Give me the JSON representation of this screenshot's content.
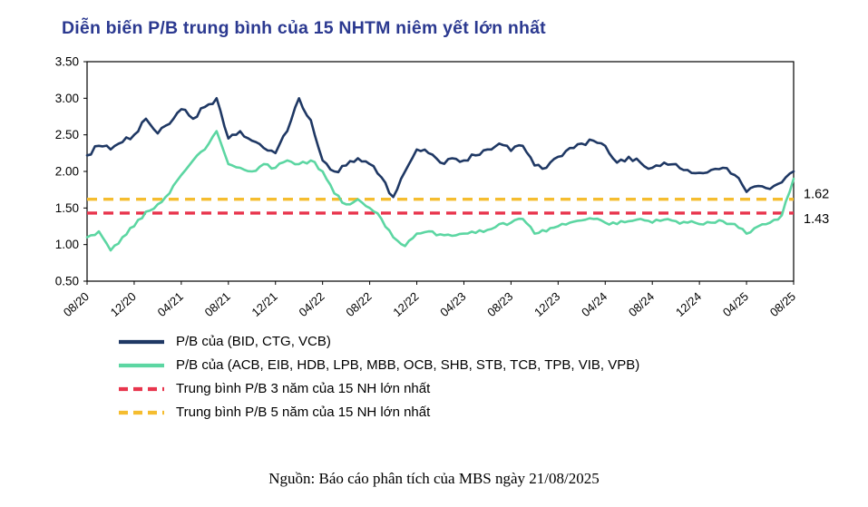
{
  "colors": {
    "title": "#2B3990",
    "navy_series": "#1F3864",
    "green_series": "#5CD6A2",
    "red_reference": "#E8354D",
    "yellow_reference": "#F5BD2F",
    "axis": "#000000",
    "background": "#FFFFFF"
  },
  "caption": "Nguồn: Báo cáo phân tích của MBS ngày 21/08/2025",
  "chart_data": {
    "type": "line",
    "title": "Diễn biến P/B trung bình của 15 NHTM niêm yết lớn nhất",
    "ylim": [
      0.5,
      3.5
    ],
    "y_ticks": [
      0.5,
      1.0,
      1.5,
      2.0,
      2.5,
      3.0,
      3.5
    ],
    "grid": false,
    "legend_position": "bottom-left",
    "x_tick_every": 4,
    "x_labels": [
      "08/20",
      "09/20",
      "10/20",
      "11/20",
      "12/20",
      "01/21",
      "02/21",
      "03/21",
      "04/21",
      "05/21",
      "06/21",
      "07/21",
      "08/21",
      "09/21",
      "10/21",
      "11/21",
      "12/21",
      "01/22",
      "02/22",
      "03/22",
      "04/22",
      "05/22",
      "06/22",
      "07/22",
      "08/22",
      "09/22",
      "10/22",
      "11/22",
      "12/22",
      "01/23",
      "02/23",
      "03/23",
      "04/23",
      "05/23",
      "06/23",
      "07/23",
      "08/23",
      "09/23",
      "10/23",
      "11/23",
      "12/23",
      "01/24",
      "02/24",
      "03/24",
      "04/24",
      "05/24",
      "06/24",
      "07/24",
      "08/24",
      "09/24",
      "10/24",
      "11/24",
      "12/24",
      "01/25",
      "02/25",
      "03/25",
      "04/25",
      "05/25",
      "06/25",
      "07/25",
      "08/25"
    ],
    "x_tick_labels": [
      "08/20",
      "12/20",
      "04/21",
      "08/21",
      "12/21",
      "04/22",
      "08/22",
      "12/22",
      "04/23",
      "08/23",
      "12/23",
      "04/24",
      "08/24",
      "12/24",
      "04/25",
      "08/25"
    ],
    "series": [
      {
        "name": "P/B của (BID, CTG, VCB)",
        "color": "#1F3864",
        "values": [
          2.22,
          2.35,
          2.3,
          2.4,
          2.5,
          2.72,
          2.52,
          2.65,
          2.85,
          2.72,
          2.88,
          3.0,
          2.45,
          2.55,
          2.42,
          2.32,
          2.25,
          2.55,
          3.0,
          2.7,
          2.15,
          2.0,
          2.08,
          2.18,
          2.1,
          1.92,
          1.65,
          2.0,
          2.3,
          2.25,
          2.12,
          2.18,
          2.15,
          2.22,
          2.3,
          2.38,
          2.28,
          2.35,
          2.08,
          2.05,
          2.2,
          2.32,
          2.38,
          2.42,
          2.35,
          2.12,
          2.2,
          2.12,
          2.05,
          2.12,
          2.1,
          2.02,
          1.98,
          2.02,
          2.05,
          1.95,
          1.72,
          1.8,
          1.76,
          1.85,
          2.0
        ]
      },
      {
        "name": "P/B của (ACB, EIB, HDB,  LPB, MBB, OCB, SHB, STB, TCB, TPB, VIB, VPB)",
        "color": "#5CD6A2",
        "values": [
          1.1,
          1.18,
          0.92,
          1.1,
          1.25,
          1.45,
          1.55,
          1.7,
          1.95,
          2.15,
          2.3,
          2.55,
          2.1,
          2.05,
          2.0,
          2.1,
          2.05,
          2.15,
          2.1,
          2.15,
          2.0,
          1.7,
          1.55,
          1.62,
          1.5,
          1.35,
          1.1,
          0.98,
          1.15,
          1.18,
          1.14,
          1.12,
          1.15,
          1.16,
          1.2,
          1.28,
          1.3,
          1.35,
          1.15,
          1.18,
          1.25,
          1.3,
          1.33,
          1.35,
          1.3,
          1.28,
          1.32,
          1.35,
          1.3,
          1.34,
          1.32,
          1.3,
          1.28,
          1.3,
          1.32,
          1.28,
          1.15,
          1.25,
          1.3,
          1.4,
          1.9
        ]
      }
    ],
    "reference_lines": [
      {
        "name": "Trung bình P/B 3 năm của 15 NH lớn nhất",
        "value": 1.43,
        "label": "1.43",
        "color": "#E8354D",
        "style": "dashed"
      },
      {
        "name": "Trung bình P/B 5 năm của 15 NH lớn nhất",
        "value": 1.62,
        "label": "1.62",
        "color": "#F5BD2F",
        "style": "dashed"
      }
    ]
  }
}
